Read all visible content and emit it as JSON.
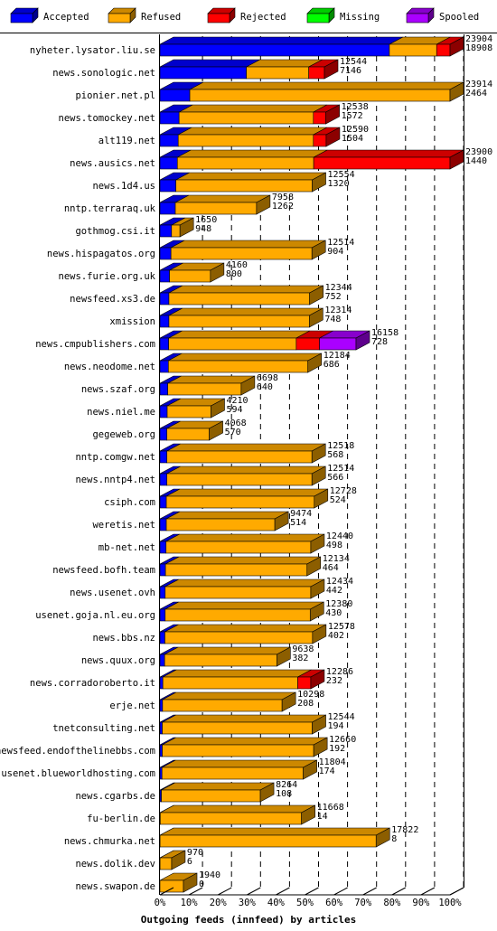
{
  "chart_data": {
    "type": "bar",
    "orientation": "horizontal",
    "stacked": true,
    "title": "Outgoing feeds (innfeed) by articles",
    "xlim": [
      0,
      100
    ],
    "x_unit": "%",
    "x_ticks": [
      "0%",
      "10%",
      "20%",
      "30%",
      "40%",
      "50%",
      "60%",
      "70%",
      "80%",
      "90%",
      "100%"
    ],
    "grid": true,
    "legend_position": "top",
    "series": [
      {
        "name": "Accepted",
        "color": "#0000ff"
      },
      {
        "name": "Refused",
        "color": "#ffaa00"
      },
      {
        "name": "Rejected",
        "color": "#ff0000"
      },
      {
        "name": "Missing",
        "color": "#00ff00"
      },
      {
        "name": "Spooled",
        "color": "#aa00ff"
      }
    ],
    "rows": [
      {
        "site": "nyheter.lysator.liu.se",
        "offered": "23904",
        "accepted": "18908",
        "segments": [
          79.1,
          16.3,
          4.6,
          0,
          0
        ]
      },
      {
        "site": "news.sonologic.net",
        "offered": "12544",
        "accepted": "7146",
        "segments": [
          29.8,
          21.5,
          5.4,
          0,
          0
        ]
      },
      {
        "site": "pionier.net.pl",
        "offered": "23914",
        "accepted": "2464",
        "segments": [
          10.3,
          89.7,
          0,
          0,
          0
        ]
      },
      {
        "site": "news.tomockey.net",
        "offered": "12538",
        "accepted": "1572",
        "segments": [
          6.6,
          46.3,
          4.3,
          0,
          0
        ]
      },
      {
        "site": "alt119.net",
        "offered": "12590",
        "accepted": "1504",
        "segments": [
          6.3,
          46.6,
          4.4,
          0,
          0
        ]
      },
      {
        "site": "news.ausics.net",
        "offered": "23900",
        "accepted": "1440",
        "segments": [
          6.0,
          47.0,
          47.0,
          0,
          0
        ]
      },
      {
        "site": "news.1d4.us",
        "offered": "12554",
        "accepted": "1320",
        "segments": [
          5.5,
          47.0,
          0,
          0,
          0
        ]
      },
      {
        "site": "nntp.terraraq.uk",
        "offered": "7958",
        "accepted": "1262",
        "segments": [
          5.3,
          28.0,
          0,
          0,
          0
        ]
      },
      {
        "site": "gothmog.csi.it",
        "offered": "1650",
        "accepted": "948",
        "segments": [
          4.0,
          2.9,
          0,
          0,
          0
        ]
      },
      {
        "site": "news.hispagatos.org",
        "offered": "12514",
        "accepted": "904",
        "segments": [
          3.8,
          48.6,
          0,
          0,
          0
        ]
      },
      {
        "site": "news.furie.org.uk",
        "offered": "4160",
        "accepted": "800",
        "segments": [
          3.3,
          14.1,
          0,
          0,
          0
        ]
      },
      {
        "site": "newsfeed.xs3.de",
        "offered": "12344",
        "accepted": "752",
        "segments": [
          3.1,
          48.5,
          0,
          0,
          0
        ]
      },
      {
        "site": "xmission",
        "offered": "12314",
        "accepted": "748",
        "segments": [
          3.1,
          48.4,
          0,
          0,
          0
        ]
      },
      {
        "site": "news.cmpublishers.com",
        "offered": "16158",
        "accepted": "728",
        "segments": [
          3.0,
          44.0,
          8.0,
          0,
          12.6
        ]
      },
      {
        "site": "news.neodome.net",
        "offered": "12184",
        "accepted": "686",
        "segments": [
          2.9,
          48.1,
          0,
          0,
          0
        ]
      },
      {
        "site": "news.szaf.org",
        "offered": "6698",
        "accepted": "640",
        "segments": [
          2.7,
          25.3,
          0,
          0,
          0
        ]
      },
      {
        "site": "news.niel.me",
        "offered": "4210",
        "accepted": "594",
        "segments": [
          2.5,
          15.1,
          0,
          0,
          0
        ]
      },
      {
        "site": "gegeweb.org",
        "offered": "4068",
        "accepted": "570",
        "segments": [
          2.4,
          14.6,
          0,
          0,
          0
        ]
      },
      {
        "site": "nntp.comgw.net",
        "offered": "12518",
        "accepted": "568",
        "segments": [
          2.4,
          50.0,
          0,
          0,
          0
        ]
      },
      {
        "site": "news.nntp4.net",
        "offered": "12514",
        "accepted": "566",
        "segments": [
          2.4,
          50.0,
          0,
          0,
          0
        ]
      },
      {
        "site": "csiph.com",
        "offered": "12728",
        "accepted": "524",
        "segments": [
          2.2,
          51.0,
          0,
          0,
          0
        ]
      },
      {
        "site": "weretis.net",
        "offered": "9474",
        "accepted": "514",
        "segments": [
          2.2,
          37.4,
          0,
          0,
          0
        ]
      },
      {
        "site": "mb-net.net",
        "offered": "12440",
        "accepted": "498",
        "segments": [
          2.1,
          49.9,
          0,
          0,
          0
        ]
      },
      {
        "site": "newsfeed.bofh.team",
        "offered": "12134",
        "accepted": "464",
        "segments": [
          1.9,
          48.8,
          0,
          0,
          0
        ]
      },
      {
        "site": "news.usenet.ovh",
        "offered": "12434",
        "accepted": "442",
        "segments": [
          1.8,
          50.2,
          0,
          0,
          0
        ]
      },
      {
        "site": "usenet.goja.nl.eu.org",
        "offered": "12380",
        "accepted": "430",
        "segments": [
          1.8,
          50.0,
          0,
          0,
          0
        ]
      },
      {
        "site": "news.bbs.nz",
        "offered": "12578",
        "accepted": "402",
        "segments": [
          1.7,
          50.9,
          0,
          0,
          0
        ]
      },
      {
        "site": "news.quux.org",
        "offered": "9638",
        "accepted": "382",
        "segments": [
          1.6,
          38.7,
          0,
          0,
          0
        ]
      },
      {
        "site": "news.corradoroberto.it",
        "offered": "12286",
        "accepted": "232",
        "segments": [
          1.0,
          46.5,
          4.5,
          0,
          0
        ]
      },
      {
        "site": "erje.net",
        "offered": "10298",
        "accepted": "208",
        "segments": [
          0.9,
          41.2,
          0,
          0,
          0
        ]
      },
      {
        "site": "tnetconsulting.net",
        "offered": "12544",
        "accepted": "194",
        "segments": [
          0.8,
          51.7,
          0,
          0,
          0
        ]
      },
      {
        "site": "newsfeed.endofthelinebbs.com",
        "offered": "12660",
        "accepted": "192",
        "segments": [
          0.8,
          52.2,
          0,
          0,
          0
        ]
      },
      {
        "site": "usenet.blueworldhosting.com",
        "offered": "11804",
        "accepted": "174",
        "segments": [
          0.7,
          48.7,
          0,
          0,
          0
        ]
      },
      {
        "site": "news.cgarbs.de",
        "offered": "8264",
        "accepted": "108",
        "segments": [
          0.5,
          34.1,
          0,
          0,
          0
        ]
      },
      {
        "site": "fu-berlin.de",
        "offered": "11668",
        "accepted": "14",
        "segments": [
          0.1,
          48.7,
          0,
          0,
          0
        ]
      },
      {
        "site": "news.chmurka.net",
        "offered": "17822",
        "accepted": "8",
        "segments": [
          0.03,
          74.5,
          0,
          0,
          0
        ]
      },
      {
        "site": "news.dolik.dev",
        "offered": "970",
        "accepted": "6",
        "segments": [
          0.03,
          4.0,
          0,
          0,
          0
        ]
      },
      {
        "site": "news.swapon.de",
        "offered": "1940",
        "accepted": "0",
        "segments": [
          0,
          8.1,
          0,
          0,
          0
        ]
      }
    ]
  }
}
